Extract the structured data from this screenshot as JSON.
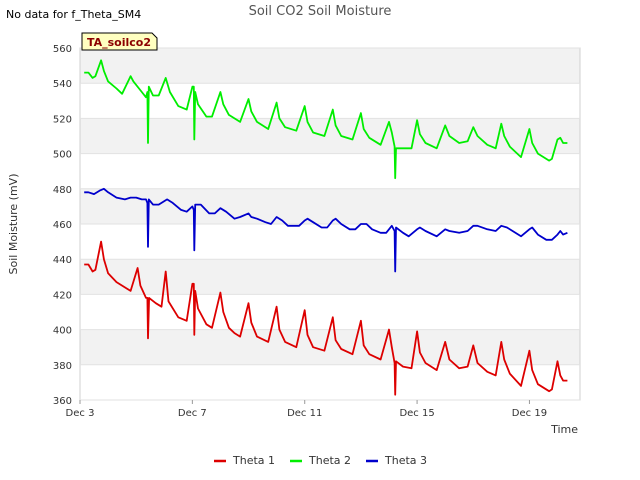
{
  "note": "No data for f_Theta_SM4",
  "chart_data": {
    "type": "line",
    "title": "Soil CO2 Soil Moisture",
    "xlabel": "Time",
    "ylabel": "Soil Moisture (mV)",
    "ylim": [
      360,
      560
    ],
    "yticks": [
      360,
      380,
      400,
      420,
      440,
      460,
      480,
      500,
      520,
      540,
      560
    ],
    "xlim": [
      3.0,
      20.8
    ],
    "xticks": [
      {
        "x": 3,
        "label": "Dec 3"
      },
      {
        "x": 7,
        "label": "Dec 7"
      },
      {
        "x": 11,
        "label": "Dec 11"
      },
      {
        "x": 15,
        "label": "Dec 15"
      },
      {
        "x": 19,
        "label": "Dec 19"
      }
    ],
    "grid": true,
    "legend_position": "bottom",
    "annotation_box": "TA_soilco2",
    "series": [
      {
        "name": "Theta 1",
        "color": "#dd0000",
        "points": [
          [
            3.15,
            437
          ],
          [
            3.3,
            437
          ],
          [
            3.45,
            433
          ],
          [
            3.55,
            434
          ],
          [
            3.75,
            450
          ],
          [
            3.85,
            440
          ],
          [
            4.0,
            432
          ],
          [
            4.3,
            427
          ],
          [
            4.6,
            424
          ],
          [
            4.8,
            422
          ],
          [
            5.05,
            435
          ],
          [
            5.15,
            425
          ],
          [
            5.35,
            418
          ],
          [
            5.4,
            418
          ],
          [
            5.42,
            395
          ],
          [
            5.46,
            418
          ],
          [
            5.7,
            415
          ],
          [
            5.9,
            413
          ],
          [
            6.05,
            433
          ],
          [
            6.15,
            416
          ],
          [
            6.5,
            407
          ],
          [
            6.8,
            405
          ],
          [
            7.0,
            426
          ],
          [
            7.05,
            426
          ],
          [
            7.07,
            397
          ],
          [
            7.1,
            422
          ],
          [
            7.2,
            412
          ],
          [
            7.5,
            403
          ],
          [
            7.7,
            401
          ],
          [
            8.0,
            421
          ],
          [
            8.1,
            410
          ],
          [
            8.3,
            401
          ],
          [
            8.5,
            398
          ],
          [
            8.7,
            396
          ],
          [
            9.0,
            415
          ],
          [
            9.1,
            404
          ],
          [
            9.3,
            396
          ],
          [
            9.7,
            393
          ],
          [
            10.0,
            413
          ],
          [
            10.1,
            400
          ],
          [
            10.3,
            393
          ],
          [
            10.7,
            390
          ],
          [
            11.0,
            411
          ],
          [
            11.1,
            397
          ],
          [
            11.3,
            390
          ],
          [
            11.7,
            388
          ],
          [
            12.0,
            407
          ],
          [
            12.1,
            394
          ],
          [
            12.3,
            389
          ],
          [
            12.7,
            386
          ],
          [
            13.0,
            405
          ],
          [
            13.1,
            391
          ],
          [
            13.3,
            386
          ],
          [
            13.7,
            383
          ],
          [
            14.0,
            400
          ],
          [
            14.1,
            390
          ],
          [
            14.2,
            381
          ],
          [
            14.22,
            363
          ],
          [
            14.25,
            382
          ],
          [
            14.5,
            379
          ],
          [
            14.8,
            378
          ],
          [
            15.0,
            399
          ],
          [
            15.1,
            387
          ],
          [
            15.3,
            381
          ],
          [
            15.7,
            377
          ],
          [
            16.0,
            393
          ],
          [
            16.15,
            383
          ],
          [
            16.5,
            378
          ],
          [
            16.8,
            379
          ],
          [
            17.0,
            391
          ],
          [
            17.15,
            381
          ],
          [
            17.5,
            376
          ],
          [
            17.8,
            374
          ],
          [
            18.0,
            393
          ],
          [
            18.1,
            383
          ],
          [
            18.3,
            375
          ],
          [
            18.7,
            368
          ],
          [
            19.0,
            388
          ],
          [
            19.1,
            377
          ],
          [
            19.3,
            369
          ],
          [
            19.7,
            365
          ],
          [
            19.8,
            366
          ],
          [
            20.0,
            382
          ],
          [
            20.1,
            374
          ],
          [
            20.2,
            371
          ],
          [
            20.35,
            371
          ]
        ]
      },
      {
        "name": "Theta 2",
        "color": "#00ee00",
        "points": [
          [
            3.15,
            546
          ],
          [
            3.3,
            546
          ],
          [
            3.45,
            543
          ],
          [
            3.55,
            544
          ],
          [
            3.75,
            553
          ],
          [
            3.85,
            547
          ],
          [
            4.0,
            541
          ],
          [
            4.3,
            537
          ],
          [
            4.5,
            534
          ],
          [
            4.8,
            544
          ],
          [
            4.9,
            541
          ],
          [
            5.2,
            535
          ],
          [
            5.35,
            532
          ],
          [
            5.4,
            535
          ],
          [
            5.42,
            506
          ],
          [
            5.45,
            538
          ],
          [
            5.6,
            533
          ],
          [
            5.8,
            533
          ],
          [
            6.05,
            543
          ],
          [
            6.2,
            535
          ],
          [
            6.5,
            527
          ],
          [
            6.8,
            525
          ],
          [
            7.0,
            538
          ],
          [
            7.05,
            538
          ],
          [
            7.07,
            508
          ],
          [
            7.1,
            535
          ],
          [
            7.2,
            528
          ],
          [
            7.5,
            521
          ],
          [
            7.7,
            521
          ],
          [
            8.0,
            535
          ],
          [
            8.1,
            528
          ],
          [
            8.3,
            522
          ],
          [
            8.7,
            518
          ],
          [
            9.0,
            531
          ],
          [
            9.1,
            524
          ],
          [
            9.3,
            518
          ],
          [
            9.7,
            514
          ],
          [
            10.0,
            529
          ],
          [
            10.1,
            520
          ],
          [
            10.3,
            515
          ],
          [
            10.7,
            513
          ],
          [
            11.0,
            527
          ],
          [
            11.1,
            518
          ],
          [
            11.3,
            512
          ],
          [
            11.7,
            510
          ],
          [
            12.0,
            525
          ],
          [
            12.1,
            516
          ],
          [
            12.3,
            510
          ],
          [
            12.7,
            508
          ],
          [
            13.0,
            523
          ],
          [
            13.1,
            514
          ],
          [
            13.3,
            509
          ],
          [
            13.7,
            505
          ],
          [
            14.0,
            518
          ],
          [
            14.1,
            512
          ],
          [
            14.2,
            504
          ],
          [
            14.22,
            486
          ],
          [
            14.25,
            503
          ],
          [
            14.5,
            503
          ],
          [
            14.8,
            503
          ],
          [
            15.0,
            519
          ],
          [
            15.1,
            511
          ],
          [
            15.3,
            506
          ],
          [
            15.7,
            503
          ],
          [
            16.0,
            516
          ],
          [
            16.15,
            510
          ],
          [
            16.5,
            506
          ],
          [
            16.8,
            507
          ],
          [
            17.0,
            515
          ],
          [
            17.15,
            510
          ],
          [
            17.5,
            505
          ],
          [
            17.8,
            503
          ],
          [
            18.0,
            517
          ],
          [
            18.1,
            510
          ],
          [
            18.3,
            504
          ],
          [
            18.7,
            498
          ],
          [
            19.0,
            514
          ],
          [
            19.1,
            506
          ],
          [
            19.3,
            500
          ],
          [
            19.7,
            496
          ],
          [
            19.8,
            497
          ],
          [
            20.0,
            508
          ],
          [
            20.1,
            509
          ],
          [
            20.2,
            506
          ],
          [
            20.35,
            506
          ]
        ]
      },
      {
        "name": "Theta 3",
        "color": "#0000cc",
        "points": [
          [
            3.15,
            478
          ],
          [
            3.3,
            478
          ],
          [
            3.5,
            477
          ],
          [
            3.7,
            479
          ],
          [
            3.85,
            480
          ],
          [
            4.0,
            478
          ],
          [
            4.3,
            475
          ],
          [
            4.6,
            474
          ],
          [
            4.8,
            475
          ],
          [
            5.0,
            475
          ],
          [
            5.2,
            474
          ],
          [
            5.35,
            474
          ],
          [
            5.4,
            472
          ],
          [
            5.42,
            447
          ],
          [
            5.45,
            474
          ],
          [
            5.6,
            471
          ],
          [
            5.8,
            471
          ],
          [
            6.0,
            473
          ],
          [
            6.1,
            474
          ],
          [
            6.3,
            472
          ],
          [
            6.6,
            468
          ],
          [
            6.8,
            467
          ],
          [
            7.0,
            470
          ],
          [
            7.05,
            468
          ],
          [
            7.07,
            445
          ],
          [
            7.1,
            471
          ],
          [
            7.3,
            471
          ],
          [
            7.6,
            466
          ],
          [
            7.8,
            466
          ],
          [
            8.0,
            469
          ],
          [
            8.2,
            467
          ],
          [
            8.5,
            463
          ],
          [
            8.7,
            464
          ],
          [
            9.0,
            466
          ],
          [
            9.1,
            464
          ],
          [
            9.3,
            463
          ],
          [
            9.6,
            461
          ],
          [
            9.8,
            460
          ],
          [
            10.0,
            464
          ],
          [
            10.2,
            462
          ],
          [
            10.4,
            459
          ],
          [
            10.8,
            459
          ],
          [
            11.0,
            462
          ],
          [
            11.1,
            463
          ],
          [
            11.3,
            461
          ],
          [
            11.6,
            458
          ],
          [
            11.8,
            458
          ],
          [
            12.0,
            462
          ],
          [
            12.1,
            463
          ],
          [
            12.3,
            460
          ],
          [
            12.6,
            457
          ],
          [
            12.8,
            457
          ],
          [
            13.0,
            460
          ],
          [
            13.2,
            460
          ],
          [
            13.4,
            457
          ],
          [
            13.7,
            455
          ],
          [
            13.9,
            455
          ],
          [
            14.1,
            459
          ],
          [
            14.2,
            456
          ],
          [
            14.22,
            433
          ],
          [
            14.25,
            458
          ],
          [
            14.5,
            455
          ],
          [
            14.7,
            453
          ],
          [
            15.0,
            457
          ],
          [
            15.1,
            458
          ],
          [
            15.3,
            456
          ],
          [
            15.7,
            453
          ],
          [
            16.0,
            457
          ],
          [
            16.15,
            456
          ],
          [
            16.5,
            455
          ],
          [
            16.8,
            456
          ],
          [
            17.0,
            459
          ],
          [
            17.15,
            459
          ],
          [
            17.5,
            457
          ],
          [
            17.8,
            456
          ],
          [
            18.0,
            459
          ],
          [
            18.2,
            458
          ],
          [
            18.4,
            456
          ],
          [
            18.7,
            453
          ],
          [
            19.0,
            457
          ],
          [
            19.1,
            458
          ],
          [
            19.3,
            454
          ],
          [
            19.6,
            451
          ],
          [
            19.8,
            451
          ],
          [
            20.0,
            454
          ],
          [
            20.1,
            456
          ],
          [
            20.2,
            454
          ],
          [
            20.35,
            455
          ]
        ]
      }
    ]
  }
}
